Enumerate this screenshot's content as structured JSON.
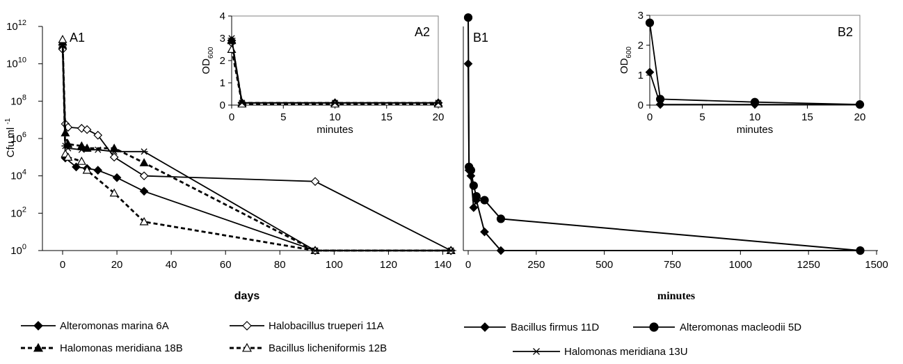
{
  "chart_data": [
    {
      "id": "A1",
      "type": "line",
      "panel_label": "A1",
      "xlabel": "days",
      "ylabel": "Cfu ml-1",
      "ylabel_base": "Cfu ml",
      "ylabel_sup": "-1",
      "yscale": "log",
      "xlim": [
        0,
        145
      ],
      "ylim": [
        1,
        1000000000000
      ],
      "xticks": [
        "0",
        "20",
        "40",
        "60",
        "80",
        "100",
        "120",
        "140"
      ],
      "yticks": [
        {
          "base": "10",
          "exp": "0"
        },
        {
          "base": "10",
          "exp": "2"
        },
        {
          "base": "10",
          "exp": "4"
        },
        {
          "base": "10",
          "exp": "6"
        },
        {
          "base": "10",
          "exp": "8"
        },
        {
          "base": "10",
          "exp": "10"
        },
        {
          "base": "10",
          "exp": "12"
        }
      ],
      "series": [
        {
          "name": "Alteromonas marina 6A",
          "marker": "diamond-filled",
          "dash": "solid",
          "points": [
            [
              0,
              70000000000
            ],
            [
              1,
              90000
            ],
            [
              5,
              30000
            ],
            [
              9,
              25000
            ],
            [
              13,
              20000
            ],
            [
              20,
              8000
            ],
            [
              30,
              1500
            ],
            [
              93,
              1
            ],
            [
              143,
              1
            ]
          ]
        },
        {
          "name": "Halobacillus trueperi 11A",
          "marker": "diamond-open",
          "dash": "solid",
          "points": [
            [
              0,
              60000000000
            ],
            [
              1,
              6000000
            ],
            [
              2,
              4000000
            ],
            [
              7,
              3500000
            ],
            [
              9,
              3000000
            ],
            [
              13,
              1500000
            ],
            [
              19,
              100000
            ],
            [
              30,
              10000
            ],
            [
              93,
              5000
            ],
            [
              143,
              1
            ]
          ]
        },
        {
          "name": "Halomonas meridiana 18B",
          "marker": "triangle-filled",
          "dash": "dashed",
          "points": [
            [
              0,
              150000000000
            ],
            [
              1,
              2000000
            ],
            [
              2,
              500000
            ],
            [
              7,
              400000
            ],
            [
              9,
              300000
            ],
            [
              19,
              300000
            ],
            [
              30,
              50000
            ],
            [
              93,
              1
            ],
            [
              143,
              1
            ]
          ]
        },
        {
          "name": "Bacillus licheniformis 12B",
          "marker": "triangle-open",
          "dash": "dashed",
          "points": [
            [
              0,
              200000000000
            ],
            [
              1,
              150000
            ],
            [
              2,
              100000
            ],
            [
              7,
              60000
            ],
            [
              9,
              20000
            ],
            [
              19,
              1200
            ],
            [
              30,
              35
            ],
            [
              93,
              1
            ],
            [
              143,
              1
            ]
          ]
        },
        {
          "name": "Halomonas meridiana 13U",
          "marker": "star",
          "dash": "solid",
          "points": [
            [
              0,
              90000000000
            ],
            [
              1,
              400000
            ],
            [
              2,
              300000
            ],
            [
              7,
              250000
            ],
            [
              13,
              250000
            ],
            [
              19,
              200000
            ],
            [
              30,
              200000
            ],
            [
              93,
              1
            ],
            [
              143,
              1
            ]
          ]
        }
      ]
    },
    {
      "id": "A2",
      "type": "line",
      "panel_label": "A2",
      "xlabel": "minutes",
      "ylabel": "OD600",
      "ylabel_base": "OD",
      "ylabel_sub": "600",
      "xlim": [
        0,
        20
      ],
      "ylim": [
        0,
        4
      ],
      "xticks": [
        "0",
        "5",
        "10",
        "15",
        "20"
      ],
      "yticks": [
        "0",
        "1",
        "2",
        "3",
        "4"
      ],
      "series": [
        {
          "name": "Alteromonas marina 6A",
          "marker": "diamond-filled",
          "dash": "solid",
          "points": [
            [
              0,
              2.9
            ],
            [
              1,
              0.1
            ],
            [
              10,
              0.1
            ],
            [
              20,
              0.1
            ]
          ]
        },
        {
          "name": "Halobacillus trueperi 11A",
          "marker": "diamond-open",
          "dash": "solid",
          "points": [
            [
              0,
              2.8
            ],
            [
              1,
              0.1
            ],
            [
              10,
              0.1
            ],
            [
              20,
              0.1
            ]
          ]
        },
        {
          "name": "Halomonas meridiana 18B",
          "marker": "triangle-filled",
          "dash": "dashed",
          "points": [
            [
              0,
              2.9
            ],
            [
              1,
              0.1
            ],
            [
              10,
              0.1
            ],
            [
              20,
              0.1
            ]
          ]
        },
        {
          "name": "Bacillus licheniformis 12B",
          "marker": "triangle-open",
          "dash": "dashed",
          "points": [
            [
              0,
              2.5
            ],
            [
              1,
              0.05
            ],
            [
              10,
              0.05
            ],
            [
              20,
              0.05
            ]
          ]
        },
        {
          "name": "Halomonas meridiana 13U",
          "marker": "star",
          "dash": "solid",
          "points": [
            [
              0,
              3.0
            ],
            [
              1,
              0.1
            ],
            [
              10,
              0.1
            ],
            [
              20,
              0.1
            ]
          ]
        }
      ]
    },
    {
      "id": "B1",
      "type": "line",
      "panel_label": "B1",
      "xlabel": "minutes",
      "yscale": "log",
      "xlim": [
        0,
        1500
      ],
      "ylim": [
        1,
        1000000000000
      ],
      "xticks": [
        "0",
        "250",
        "500",
        "750",
        "1000",
        "1250",
        "1500"
      ],
      "series": [
        {
          "name": "Bacillus firmus 11D",
          "marker": "diamond-filled",
          "dash": "solid",
          "points": [
            [
              0,
              10000000000
            ],
            [
              3,
              20000
            ],
            [
              10,
              10000
            ],
            [
              20,
              200
            ],
            [
              30,
              500
            ],
            [
              60,
              10
            ],
            [
              120,
              1
            ],
            [
              1440,
              1
            ]
          ]
        },
        {
          "name": "Alteromonas macleodii 5D",
          "marker": "circle-filled",
          "dash": "solid",
          "points": [
            [
              0,
              3000000000000
            ],
            [
              3,
              30000
            ],
            [
              10,
              20000
            ],
            [
              20,
              3000
            ],
            [
              30,
              800
            ],
            [
              60,
              500
            ],
            [
              120,
              50
            ],
            [
              1440,
              1
            ]
          ]
        }
      ]
    },
    {
      "id": "B2",
      "type": "line",
      "panel_label": "B2",
      "xlabel": "minutes",
      "ylabel": "OD600",
      "ylabel_base": "OD",
      "ylabel_sub": "600",
      "xlim": [
        0,
        20
      ],
      "ylim": [
        0,
        3
      ],
      "xticks": [
        "0",
        "5",
        "10",
        "15",
        "20"
      ],
      "yticks": [
        "0",
        "1",
        "2",
        "3"
      ],
      "series": [
        {
          "name": "Bacillus firmus 11D",
          "marker": "diamond-filled",
          "dash": "solid",
          "points": [
            [
              0,
              1.1
            ],
            [
              1,
              0.02
            ],
            [
              10,
              0.02
            ],
            [
              20,
              0.02
            ]
          ]
        },
        {
          "name": "Alteromonas macleodii 5D",
          "marker": "circle-filled",
          "dash": "solid",
          "points": [
            [
              0,
              2.75
            ],
            [
              1,
              0.2
            ],
            [
              10,
              0.1
            ],
            [
              20,
              0.02
            ]
          ]
        }
      ]
    }
  ],
  "legend_left": [
    {
      "name": "Alteromonas marina 6A",
      "marker": "diamond-filled",
      "dash": "solid"
    },
    {
      "name": "Halobacillus trueperi 11A",
      "marker": "diamond-open",
      "dash": "solid"
    },
    {
      "name": "Halomonas meridiana 18B",
      "marker": "triangle-filled",
      "dash": "dashed"
    },
    {
      "name": "Bacillus licheniformis 12B",
      "marker": "triangle-open",
      "dash": "dashed"
    }
  ],
  "legend_right": [
    {
      "name": "Bacillus firmus 11D",
      "marker": "diamond-filled",
      "dash": "solid"
    },
    {
      "name": "Alteromonas macleodii 5D",
      "marker": "circle-filled",
      "dash": "solid"
    },
    {
      "name": "Halomonas meridiana 13U",
      "marker": "star",
      "dash": "solid"
    }
  ],
  "colors": {
    "ink": "#000000",
    "background": "#ffffff",
    "inset_border": "#808080"
  }
}
